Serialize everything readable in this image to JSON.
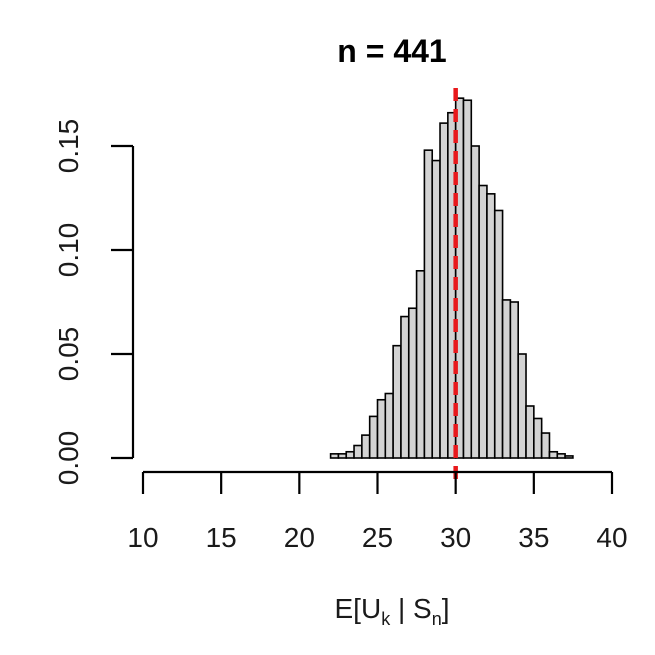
{
  "chart_data": {
    "type": "bar",
    "title": "n = 441",
    "xlabel": {
      "main": "E[U",
      "sub1": "k",
      "mid": " | S",
      "sub2": "n",
      "end": "]"
    },
    "ylabel": "",
    "xlim": [
      10,
      40
    ],
    "ylim": [
      0,
      0.17
    ],
    "x_ticks": [
      "10",
      "15",
      "20",
      "25",
      "30",
      "35",
      "40"
    ],
    "y_ticks": [
      "0.00",
      "0.05",
      "0.10",
      "0.15"
    ],
    "bin_width": 0.5,
    "bins": [
      {
        "x0": 22.0,
        "x1": 22.5,
        "h": 0.002
      },
      {
        "x0": 22.5,
        "x1": 23.0,
        "h": 0.002
      },
      {
        "x0": 23.0,
        "x1": 23.5,
        "h": 0.003
      },
      {
        "x0": 23.5,
        "x1": 24.0,
        "h": 0.006
      },
      {
        "x0": 24.0,
        "x1": 24.5,
        "h": 0.011
      },
      {
        "x0": 24.5,
        "x1": 25.0,
        "h": 0.02
      },
      {
        "x0": 25.0,
        "x1": 25.5,
        "h": 0.028
      },
      {
        "x0": 25.5,
        "x1": 26.0,
        "h": 0.031
      },
      {
        "x0": 26.0,
        "x1": 26.5,
        "h": 0.054
      },
      {
        "x0": 26.5,
        "x1": 27.0,
        "h": 0.068
      },
      {
        "x0": 27.0,
        "x1": 27.5,
        "h": 0.072
      },
      {
        "x0": 27.5,
        "x1": 28.0,
        "h": 0.09
      },
      {
        "x0": 28.0,
        "x1": 28.5,
        "h": 0.148
      },
      {
        "x0": 28.5,
        "x1": 29.0,
        "h": 0.143
      },
      {
        "x0": 29.0,
        "x1": 29.5,
        "h": 0.161
      },
      {
        "x0": 29.5,
        "x1": 30.0,
        "h": 0.166
      },
      {
        "x0": 30.0,
        "x1": 30.5,
        "h": 0.173
      },
      {
        "x0": 30.5,
        "x1": 31.0,
        "h": 0.172
      },
      {
        "x0": 31.0,
        "x1": 31.5,
        "h": 0.15
      },
      {
        "x0": 31.5,
        "x1": 32.0,
        "h": 0.131
      },
      {
        "x0": 32.0,
        "x1": 32.5,
        "h": 0.127
      },
      {
        "x0": 32.5,
        "x1": 33.0,
        "h": 0.119
      },
      {
        "x0": 33.0,
        "x1": 33.5,
        "h": 0.076
      },
      {
        "x0": 33.5,
        "x1": 34.0,
        "h": 0.075
      },
      {
        "x0": 34.0,
        "x1": 34.5,
        "h": 0.05
      },
      {
        "x0": 34.5,
        "x1": 35.0,
        "h": 0.025
      },
      {
        "x0": 35.0,
        "x1": 35.5,
        "h": 0.019
      },
      {
        "x0": 35.5,
        "x1": 36.0,
        "h": 0.012
      },
      {
        "x0": 36.0,
        "x1": 36.5,
        "h": 0.003
      },
      {
        "x0": 36.5,
        "x1": 37.0,
        "h": 0.002
      },
      {
        "x0": 37.0,
        "x1": 37.5,
        "h": 0.001
      }
    ],
    "reference_line": {
      "x": 30,
      "color": "#e8191c",
      "style": "dashed"
    },
    "bar_fill": "#d3d3d3",
    "bar_stroke": "#000000",
    "grid": false,
    "legend": "none"
  }
}
